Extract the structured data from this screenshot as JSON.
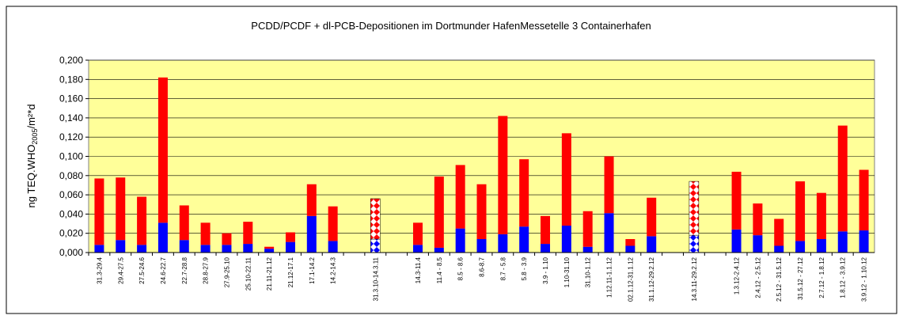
{
  "chart_data": {
    "type": "stacked_bar",
    "title": "PCDD/PCDF + dl-PCB-Depositionen im Dortmunder HafenMessetelle 3 Containerhafen",
    "ylabel": "ng TEQ.WHO",
    "ylabel_sub": "2005",
    "ylabel_end": "/m²*d",
    "categories": [
      "31.3-29.4",
      "29.4-27.5",
      "27.5-24.6",
      "24.6-22.7",
      "22.7-28.8",
      "28.8-27.9",
      "27.9-25.10",
      "25.10-22.11",
      "21.11-21.12",
      "21.12-17.1",
      "17.1-14.2",
      "14.2-14.3",
      null,
      "31.3.10-14.3.11",
      null,
      "14.3-11.4",
      "11.4 - 8.5",
      "8.5 - 8.6",
      "8.6-8.7",
      "8.7 - 5.8",
      "5.8 - 3.9",
      "3.9 - 1.10",
      "1.10-31.10",
      "31.10-1.12",
      "1.12.11-1.1.12",
      "02.1.12-31.1.12",
      "31.1.12-29.2.12",
      null,
      "14.3.11-29.2.12",
      null,
      "1.3.12-2.4.12",
      "2.4.12 - 2.5.12",
      "2.5.12 - 31.5.12",
      "31.5.12 - 27.12",
      "2.7.12 - 1.8.12",
      "1.8.12 - 3.9.12",
      "3.9.12 - 1.10.12"
    ],
    "hatched": [
      false,
      false,
      false,
      false,
      false,
      false,
      false,
      false,
      false,
      false,
      false,
      false,
      false,
      true,
      false,
      false,
      false,
      false,
      false,
      false,
      false,
      false,
      false,
      false,
      false,
      false,
      false,
      false,
      true,
      false,
      false,
      false,
      false,
      false,
      false,
      false,
      false
    ],
    "series": [
      {
        "name": "PCDD/PCDF",
        "color": "#0000ff",
        "values": [
          0.008,
          0.013,
          0.008,
          0.031,
          0.013,
          0.008,
          0.008,
          0.009,
          0.004,
          0.011,
          0.038,
          0.012,
          null,
          0.014,
          null,
          0.008,
          0.005,
          0.025,
          0.014,
          0.019,
          0.027,
          0.009,
          0.028,
          0.006,
          0.041,
          0.007,
          0.017,
          null,
          0.018,
          null,
          0.024,
          0.018,
          0.007,
          0.012,
          0.014,
          0.022,
          0.023
        ]
      },
      {
        "name": "dl-PCB",
        "color": "#ff0000",
        "values": [
          0.069,
          0.065,
          0.05,
          0.151,
          0.036,
          0.023,
          0.012,
          0.023,
          0.002,
          0.01,
          0.033,
          0.036,
          null,
          0.042,
          null,
          0.023,
          0.074,
          0.066,
          0.057,
          0.123,
          0.07,
          0.029,
          0.096,
          0.037,
          0.059,
          0.007,
          0.04,
          null,
          0.056,
          null,
          0.06,
          0.033,
          0.028,
          0.062,
          0.048,
          0.11,
          0.063
        ]
      }
    ],
    "ylim": [
      0,
      0.2
    ],
    "yticks": [
      {
        "value": 0,
        "label": "0,000"
      },
      {
        "value": 0.02,
        "label": "0,020"
      },
      {
        "value": 0.04,
        "label": "0,040"
      },
      {
        "value": 0.06,
        "label": "0,060"
      },
      {
        "value": 0.08,
        "label": "0,080"
      },
      {
        "value": 0.1,
        "label": "0,100"
      },
      {
        "value": 0.12,
        "label": "0,120"
      },
      {
        "value": 0.14,
        "label": "0,140"
      },
      {
        "value": 0.16,
        "label": "0,160"
      },
      {
        "value": 0.18,
        "label": "0,180"
      },
      {
        "value": 0.2,
        "label": "0,200"
      }
    ],
    "grid": true,
    "background": "#ffff99"
  }
}
